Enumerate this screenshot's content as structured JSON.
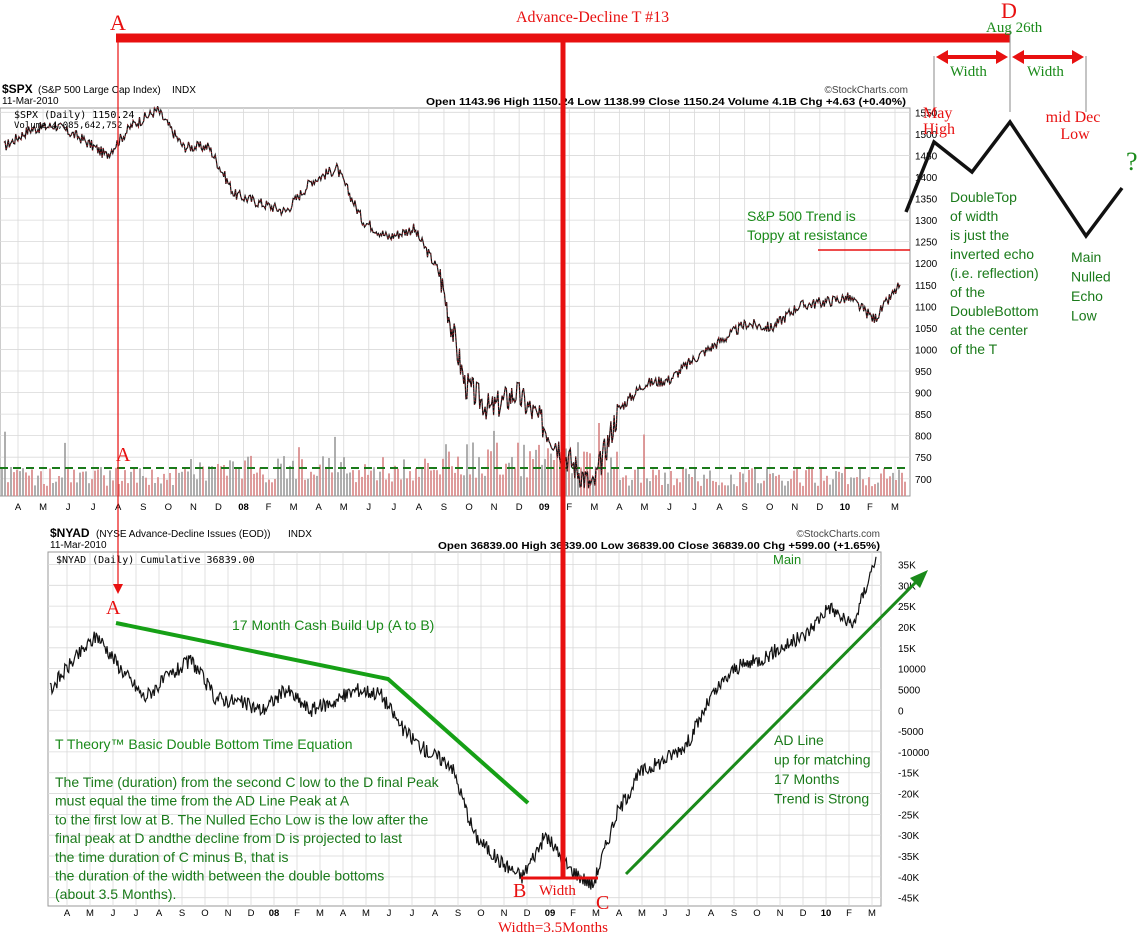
{
  "annotations": {
    "title": "Advance-Decline T #13",
    "point_a_top": "A",
    "point_a_mid": "A",
    "point_a_lower": "A",
    "point_b": "B",
    "point_c": "C",
    "point_d": "D",
    "d_date": "Aug 26th",
    "width_left": "Width",
    "width_right": "Width",
    "may_high": [
      "May",
      "High"
    ],
    "mid_dec_low": [
      "mid Dec",
      "Low"
    ],
    "question": "?",
    "double_top_text": [
      "DoubleTop",
      "of width",
      "is just the",
      "inverted echo",
      "(i.e. reflection)",
      "of the",
      "DoubleBottom",
      "at the center",
      "of the T"
    ],
    "main_nulled": [
      "Main",
      "Nulled",
      "Echo",
      "Low"
    ],
    "spx_trend": [
      "S&P 500 Trend is",
      "Toppy at resistance"
    ],
    "cash_build": "17 Month Cash Build Up  (A to B)",
    "equation_title": "T Theory™ Basic Double Bottom Time Equation",
    "equation_text": [
      "The Time (duration) from the second C low to the D final Peak",
      "must equal the time from the AD Line Peak at A",
      "to the first low at B. The Nulled Echo Low is the low after the",
      "final peak at D andthe decline from D is projected to last",
      "the time duration of C minus B, that is",
      "the duration of the width between the double bottoms",
      "(about 3.5 Months)."
    ],
    "ad_line_text": [
      "AD Line",
      "up for matching",
      "17 Months",
      "Trend is Strong"
    ],
    "main_label": "Main",
    "bottom_width": "Width",
    "bottom_width_total": "Width=3.5Months"
  },
  "spx_header": {
    "symbol": "$SPX",
    "name": "(S&P 500 Large Cap Index)",
    "exchange": "INDX",
    "date": "11-Mar-2010",
    "source": "©StockCharts.com",
    "quote": "Open 1143.96  High 1150.24  Low 1138.99  Close 1150.24  Volume 4.1B  Chg +4.63 (+0.40%)",
    "legend_price": "$SPX (Daily) 1150.24",
    "legend_volume": "Volume 4,085,642,752"
  },
  "nyad_header": {
    "symbol": "$NYAD",
    "name": "(NYSE Advance-Decline Issues (EOD))",
    "exchange": "INDX",
    "date": "11-Mar-2010",
    "source": "©StockCharts.com",
    "quote": "Open 36839.00  High 36839.00  Low 36839.00  Close 36839.00  Chg +599.00 (+1.65%)",
    "legend": "$NYAD (Daily) Cumulative 36839.00"
  },
  "colors": {
    "annotation_red": "#e81010",
    "annotation_green": "#1a8a1a",
    "trend_green": "#16a016",
    "price_line": "#111111",
    "volume_bar": "#d88a8a",
    "grid": "#d9d9d9"
  },
  "chart_data": [
    {
      "type": "line",
      "title": "$SPX (S&P 500 Large Cap Index) INDX",
      "series": [
        {
          "name": "$SPX (Daily)",
          "x": [
            "2007-04",
            "2007-05",
            "2007-06",
            "2007-07",
            "2007-08",
            "2007-09",
            "2007-10",
            "2007-11",
            "2007-12",
            "2008-01",
            "2008-02",
            "2008-03",
            "2008-04",
            "2008-05",
            "2008-06",
            "2008-07",
            "2008-08",
            "2008-09",
            "2008-10",
            "2008-11",
            "2008-12",
            "2009-01",
            "2009-02",
            "2009-03",
            "2009-04",
            "2009-05",
            "2009-06",
            "2009-07",
            "2009-08",
            "2009-09",
            "2009-10",
            "2009-11",
            "2009-12",
            "2010-01",
            "2010-02",
            "2010-03"
          ],
          "values": [
            1470,
            1510,
            1520,
            1490,
            1450,
            1520,
            1555,
            1470,
            1470,
            1360,
            1340,
            1320,
            1390,
            1420,
            1300,
            1260,
            1280,
            1180,
            920,
            860,
            900,
            830,
            750,
            680,
            860,
            920,
            930,
            980,
            1020,
            1060,
            1050,
            1100,
            1110,
            1120,
            1070,
            1150
          ]
        }
      ],
      "volume_label": "Volume",
      "y_ticks": [
        700,
        750,
        800,
        850,
        900,
        950,
        1000,
        1050,
        1100,
        1150,
        1200,
        1250,
        1300,
        1350,
        1400,
        1450,
        1500,
        1550
      ],
      "ylim": [
        660,
        1560
      ],
      "x_tick_labels": [
        "A",
        "M",
        "J",
        "J",
        "A",
        "S",
        "O",
        "N",
        "D",
        "08",
        "F",
        "M",
        "A",
        "M",
        "J",
        "J",
        "A",
        "S",
        "O",
        "N",
        "D",
        "09",
        "F",
        "M",
        "A",
        "M",
        "J",
        "J",
        "A",
        "S",
        "O",
        "N",
        "D",
        "10",
        "F",
        "M"
      ],
      "grid": true,
      "resistance_level": 1150
    },
    {
      "type": "line",
      "title": "$NYAD (NYSE Advance-Decline Issues (EOD)) INDX",
      "series": [
        {
          "name": "$NYAD (Daily) Cumulative",
          "x": [
            "2007-04",
            "2007-05",
            "2007-06",
            "2007-07",
            "2007-08",
            "2007-09",
            "2007-10",
            "2007-11",
            "2007-12",
            "2008-01",
            "2008-02",
            "2008-03",
            "2008-04",
            "2008-05",
            "2008-06",
            "2008-07",
            "2008-08",
            "2008-09",
            "2008-10",
            "2008-11",
            "2008-12",
            "2009-01",
            "2009-02",
            "2009-03",
            "2009-04",
            "2009-05",
            "2009-06",
            "2009-07",
            "2009-08",
            "2009-09",
            "2009-10",
            "2009-11",
            "2009-12",
            "2010-01",
            "2010-02",
            "2010-03"
          ],
          "values": [
            5000,
            12000,
            18000,
            10000,
            3000,
            8000,
            12000,
            3000,
            2000,
            0,
            5000,
            0,
            2000,
            5000,
            4000,
            -5000,
            -10000,
            -13000,
            -30000,
            -36000,
            -40000,
            -30000,
            -38000,
            -42000,
            -25000,
            -15000,
            -12000,
            -8000,
            3000,
            10000,
            12000,
            15000,
            18000,
            25000,
            20000,
            36839
          ]
        }
      ],
      "y_ticks": [
        "35K",
        "30K",
        "25K",
        "20K",
        "15K",
        "10000",
        "5000",
        "0",
        "-5000",
        "-10000",
        "-15K",
        "-20K",
        "-25K",
        "-30K",
        "-35K",
        "-40K",
        "-45K"
      ],
      "ylim": [
        -47000,
        38000
      ],
      "x_tick_labels": [
        "A",
        "M",
        "J",
        "J",
        "A",
        "S",
        "O",
        "N",
        "D",
        "08",
        "F",
        "M",
        "A",
        "M",
        "J",
        "J",
        "A",
        "S",
        "O",
        "N",
        "D",
        "09",
        "F",
        "M",
        "A",
        "M",
        "J",
        "J",
        "A",
        "S",
        "O",
        "N",
        "D",
        "10",
        "F",
        "M"
      ],
      "grid": true
    }
  ]
}
